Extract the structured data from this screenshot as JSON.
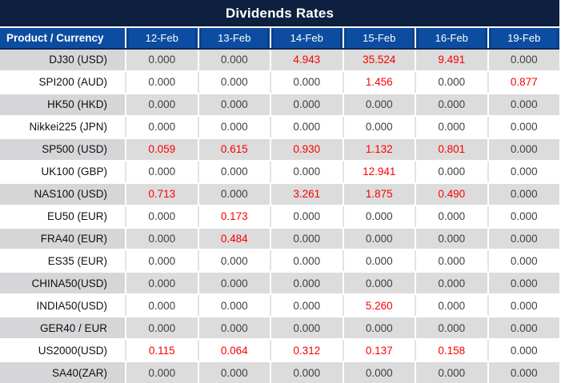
{
  "chart_data": {
    "type": "table",
    "title": "Dividends Rates",
    "columns": [
      "Product / Currency",
      "12-Feb",
      "13-Feb",
      "14-Feb",
      "15-Feb",
      "16-Feb",
      "19-Feb"
    ],
    "zero_value": "0.000",
    "rows": [
      {
        "product": "DJ30 (USD)",
        "values": [
          "0.000",
          "0.000",
          "4.943",
          "35.524",
          "9.491",
          "0.000"
        ]
      },
      {
        "product": "SPI200 (AUD)",
        "values": [
          "0.000",
          "0.000",
          "0.000",
          "1.456",
          "0.000",
          "0.877"
        ]
      },
      {
        "product": "HK50 (HKD)",
        "values": [
          "0.000",
          "0.000",
          "0.000",
          "0.000",
          "0.000",
          "0.000"
        ]
      },
      {
        "product": "Nikkei225 (JPN)",
        "values": [
          "0.000",
          "0.000",
          "0.000",
          "0.000",
          "0.000",
          "0.000"
        ]
      },
      {
        "product": "SP500 (USD)",
        "values": [
          "0.059",
          "0.615",
          "0.930",
          "1.132",
          "0.801",
          "0.000"
        ]
      },
      {
        "product": "UK100 (GBP)",
        "values": [
          "0.000",
          "0.000",
          "0.000",
          "12.941",
          "0.000",
          "0.000"
        ]
      },
      {
        "product": "NAS100 (USD)",
        "values": [
          "0.713",
          "0.000",
          "3.261",
          "1.875",
          "0.490",
          "0.000"
        ]
      },
      {
        "product": "EU50 (EUR)",
        "values": [
          "0.000",
          "0.173",
          "0.000",
          "0.000",
          "0.000",
          "0.000"
        ]
      },
      {
        "product": "FRA40 (EUR)",
        "values": [
          "0.000",
          "0.484",
          "0.000",
          "0.000",
          "0.000",
          "0.000"
        ]
      },
      {
        "product": "ES35 (EUR)",
        "values": [
          "0.000",
          "0.000",
          "0.000",
          "0.000",
          "0.000",
          "0.000"
        ]
      },
      {
        "product": "CHINA50(USD)",
        "values": [
          "0.000",
          "0.000",
          "0.000",
          "0.000",
          "0.000",
          "0.000"
        ]
      },
      {
        "product": "INDIA50(USD)",
        "values": [
          "0.000",
          "0.000",
          "0.000",
          "5.260",
          "0.000",
          "0.000"
        ]
      },
      {
        "product": "GER40 / EUR",
        "values": [
          "0.000",
          "0.000",
          "0.000",
          "0.000",
          "0.000",
          "0.000"
        ]
      },
      {
        "product": "US2000(USD)",
        "values": [
          "0.115",
          "0.064",
          "0.312",
          "0.137",
          "0.158",
          "0.000"
        ]
      },
      {
        "product": "SA40(ZAR)",
        "values": [
          "0.000",
          "0.000",
          "0.000",
          "0.000",
          "0.000",
          "0.000"
        ]
      }
    ],
    "layout": {
      "highlight_rule": "non-zero values shown in red",
      "row_striping": "first data row gray, alternating gray/white"
    }
  },
  "colors": {
    "title_bg": "#0e2040",
    "header_bg": "#0d4da1",
    "header_bottom": "#10294f",
    "row_gray_product": "#d6d6d9",
    "row_gray_value": "#dcdcdc",
    "separator_light": "#e3e3e3",
    "value_text": "#404040",
    "product_text": "#111111",
    "highlight_red": "#fa0000"
  }
}
